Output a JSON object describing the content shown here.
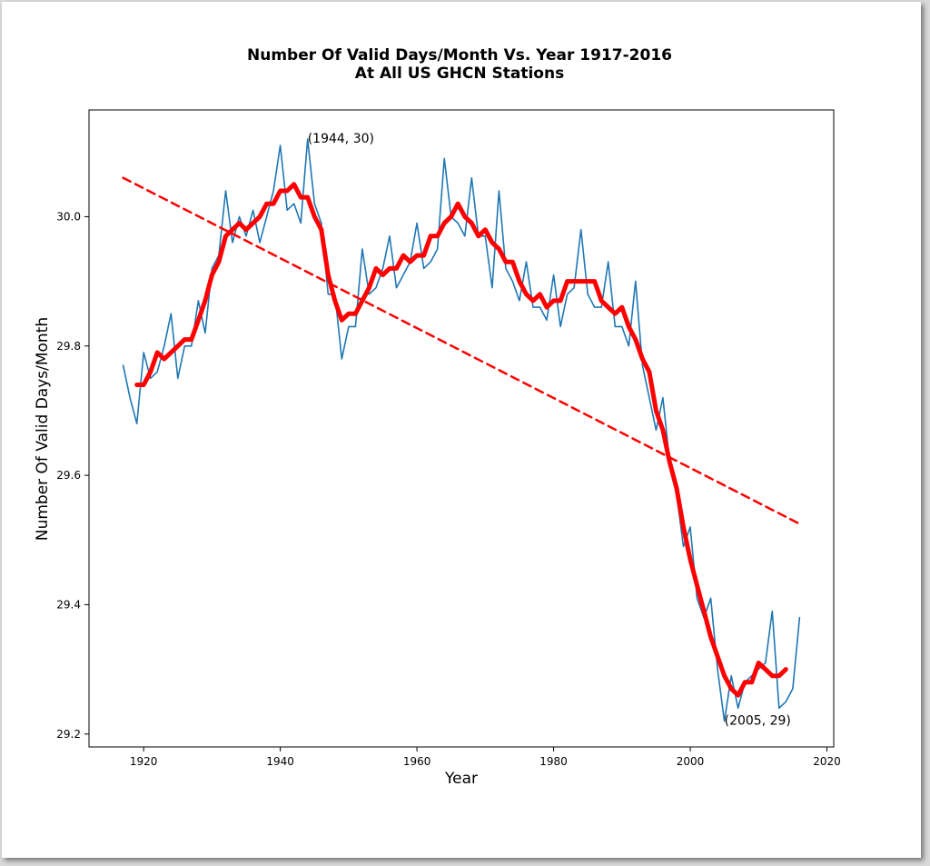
{
  "chart_data": {
    "type": "line",
    "title": "Number Of Valid Days/Month Vs. Year 1917-2016",
    "subtitle": "At All US GHCN Stations",
    "xlabel": "Year",
    "ylabel": "Number Of Valid Days/Month",
    "xlim": [
      1912,
      2021
    ],
    "ylim": [
      29.18,
      30.165
    ],
    "x_ticks": [
      1920,
      1940,
      1960,
      1980,
      2000,
      2020
    ],
    "y_ticks": [
      29.2,
      29.4,
      29.6,
      29.8,
      30.0
    ],
    "grid": false,
    "legend": "none",
    "series": [
      {
        "color": "#1f77b4",
        "x": [
          1917,
          1918,
          1919,
          1920,
          1921,
          1922,
          1923,
          1924,
          1925,
          1926,
          1927,
          1928,
          1929,
          1930,
          1931,
          1932,
          1933,
          1934,
          1935,
          1936,
          1937,
          1938,
          1939,
          1940,
          1941,
          1942,
          1943,
          1944,
          1945,
          1946,
          1947,
          1948,
          1949,
          1950,
          1951,
          1952,
          1953,
          1954,
          1955,
          1956,
          1957,
          1958,
          1959,
          1960,
          1961,
          1962,
          1963,
          1964,
          1965,
          1966,
          1967,
          1968,
          1969,
          1970,
          1971,
          1972,
          1973,
          1974,
          1975,
          1976,
          1977,
          1978,
          1979,
          1980,
          1981,
          1982,
          1983,
          1984,
          1985,
          1986,
          1987,
          1988,
          1989,
          1990,
          1991,
          1992,
          1993,
          1994,
          1995,
          1996,
          1997,
          1998,
          1999,
          2000,
          2001,
          2002,
          2003,
          2004,
          2005,
          2006,
          2007,
          2008,
          2009,
          2010,
          2011,
          2012,
          2013,
          2014,
          2015,
          2016
        ],
        "y": [
          29.77,
          29.72,
          29.68,
          29.79,
          29.75,
          29.76,
          29.8,
          29.85,
          29.75,
          29.8,
          29.8,
          29.87,
          29.82,
          29.92,
          29.94,
          30.04,
          29.96,
          30.0,
          29.97,
          30.01,
          29.96,
          30.0,
          30.04,
          30.11,
          30.01,
          30.02,
          29.99,
          30.12,
          30.02,
          29.99,
          29.88,
          29.88,
          29.78,
          29.83,
          29.83,
          29.95,
          29.88,
          29.89,
          29.92,
          29.97,
          29.89,
          29.91,
          29.93,
          29.99,
          29.92,
          29.93,
          29.95,
          30.09,
          30.0,
          29.99,
          29.97,
          30.06,
          29.97,
          29.97,
          29.89,
          30.04,
          29.92,
          29.9,
          29.87,
          29.93,
          29.86,
          29.86,
          29.84,
          29.91,
          29.83,
          29.88,
          29.89,
          29.98,
          29.88,
          29.86,
          29.86,
          29.93,
          29.83,
          29.83,
          29.8,
          29.9,
          29.77,
          29.72,
          29.67,
          29.72,
          29.62,
          29.57,
          29.49,
          29.52,
          29.41,
          29.38,
          29.41,
          29.3,
          29.22,
          29.29,
          29.24,
          29.28,
          29.29,
          29.3,
          29.31,
          29.39,
          29.24,
          29.25,
          29.27,
          29.38
        ]
      },
      {
        "color": "#ff0000",
        "x": [
          1919,
          1920,
          1921,
          1922,
          1923,
          1924,
          1925,
          1926,
          1927,
          1928,
          1929,
          1930,
          1931,
          1932,
          1933,
          1934,
          1935,
          1936,
          1937,
          1938,
          1939,
          1940,
          1941,
          1942,
          1943,
          1944,
          1945,
          1946,
          1947,
          1948,
          1949,
          1950,
          1951,
          1952,
          1953,
          1954,
          1955,
          1956,
          1957,
          1958,
          1959,
          1960,
          1961,
          1962,
          1963,
          1964,
          1965,
          1966,
          1967,
          1968,
          1969,
          1970,
          1971,
          1972,
          1973,
          1974,
          1975,
          1976,
          1977,
          1978,
          1979,
          1980,
          1981,
          1982,
          1983,
          1984,
          1985,
          1986,
          1987,
          1988,
          1989,
          1990,
          1991,
          1992,
          1993,
          1994,
          1995,
          1996,
          1997,
          1998,
          1999,
          2000,
          2001,
          2002,
          2003,
          2004,
          2005,
          2006,
          2007,
          2008,
          2009,
          2010,
          2011,
          2012,
          2013,
          2014
        ],
        "y": [
          29.74,
          29.74,
          29.76,
          29.79,
          29.78,
          29.79,
          29.8,
          29.81,
          29.81,
          29.84,
          29.87,
          29.91,
          29.93,
          29.97,
          29.98,
          29.99,
          29.98,
          29.99,
          30.0,
          30.02,
          30.02,
          30.04,
          30.04,
          30.05,
          30.03,
          30.03,
          30.0,
          29.98,
          29.91,
          29.87,
          29.84,
          29.85,
          29.85,
          29.87,
          29.89,
          29.92,
          29.91,
          29.92,
          29.92,
          29.94,
          29.93,
          29.94,
          29.94,
          29.97,
          29.97,
          29.99,
          30.0,
          30.02,
          30.0,
          29.99,
          29.97,
          29.98,
          29.96,
          29.95,
          29.93,
          29.93,
          29.9,
          29.88,
          29.87,
          29.88,
          29.86,
          29.87,
          29.87,
          29.9,
          29.9,
          29.9,
          29.9,
          29.9,
          29.87,
          29.86,
          29.85,
          29.86,
          29.83,
          29.81,
          29.78,
          29.76,
          29.7,
          29.67,
          29.62,
          29.58,
          29.52,
          29.47,
          29.43,
          29.39,
          29.35,
          29.32,
          29.29,
          29.27,
          29.26,
          29.28,
          29.28,
          29.31,
          29.3,
          29.29,
          29.29,
          29.3
        ]
      },
      {
        "color": "#ff0000",
        "x": [
          1917,
          2016
        ],
        "y": [
          30.06,
          29.525
        ]
      }
    ],
    "annotations": [
      {
        "text": "(1944, 30)",
        "x": 1944,
        "y": 30.12
      },
      {
        "text": "(2005, 29)",
        "x": 2005,
        "y": 29.22
      }
    ]
  }
}
